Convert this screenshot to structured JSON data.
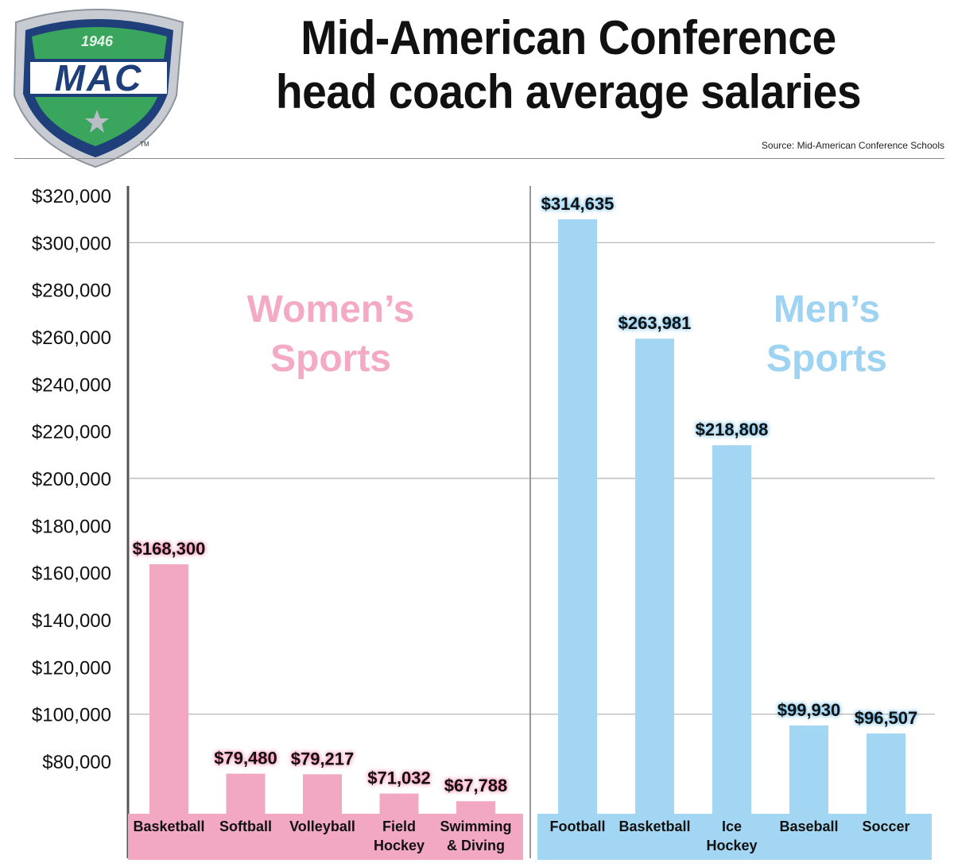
{
  "header": {
    "title_line1": "Mid-American Conference",
    "title_line2": "head coach  average salaries",
    "source": "Source: Mid-American Conference Schools"
  },
  "logo": {
    "year": "1946",
    "text": "MAC",
    "trademark": "TM",
    "colors": {
      "navy": "#1f3f7a",
      "green": "#3aa55c",
      "silver": "#c8ccd2"
    }
  },
  "colors": {
    "women": "#f2a8c2",
    "men": "#a3d6f2",
    "women_label": "#f4a9c4",
    "men_label": "#9fd3f2",
    "grid": "#b0b0b0"
  },
  "chart_data": [
    {
      "type": "bar",
      "panel": "Women's Sports",
      "panel_label": [
        "Women’s",
        "Sports"
      ],
      "categories": [
        [
          "Basketball"
        ],
        [
          "Softball"
        ],
        [
          "Volleyball"
        ],
        [
          "Field",
          "Hockey"
        ],
        [
          "Swimming",
          "& Diving"
        ]
      ],
      "values": [
        168300,
        79480,
        79217,
        71032,
        67788
      ],
      "value_labels": [
        "$168,300",
        "$79,480",
        "$79,217",
        "$71,032",
        "$67,788"
      ]
    },
    {
      "type": "bar",
      "panel": "Men's Sports",
      "panel_label": [
        "Men’s",
        "Sports"
      ],
      "categories": [
        [
          "Football"
        ],
        [
          "Basketball"
        ],
        [
          "Ice",
          "Hockey"
        ],
        [
          "Baseball"
        ],
        [
          "Soccer"
        ]
      ],
      "values": [
        314635,
        263981,
        218808,
        99930,
        96507
      ],
      "value_labels": [
        "$314,635",
        "$263,981",
        "$218,808",
        "$99,930",
        "$96,507"
      ]
    }
  ],
  "y_axis": {
    "ticks": [
      "$320,000",
      "$300,000",
      "$280,000",
      "$260,000",
      "$240,000",
      "$220,000",
      "$200,000",
      "$180,000",
      "$160,000",
      "$140,000",
      "$120,000",
      "$100,000",
      "$80,000"
    ],
    "tick_values": [
      320000,
      300000,
      280000,
      260000,
      240000,
      220000,
      200000,
      180000,
      160000,
      140000,
      120000,
      100000,
      80000
    ],
    "gridlines_at": [
      300000,
      200000,
      100000
    ]
  }
}
